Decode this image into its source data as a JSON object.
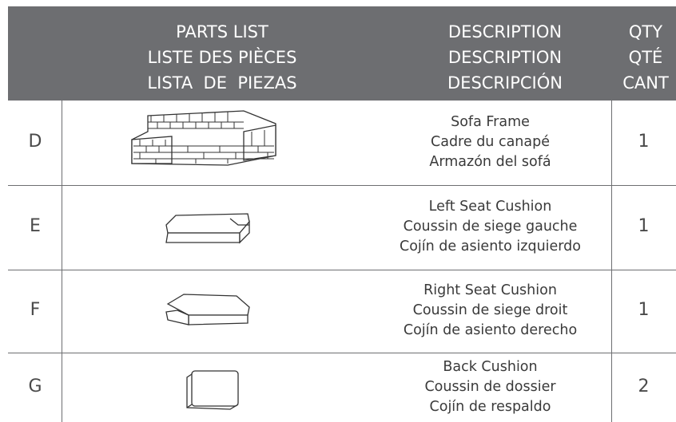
{
  "header": {
    "parts": [
      "PARTS LIST",
      "LISTE DES PIÈCES",
      "LISTA  DE  PIEZAS"
    ],
    "description": [
      "DESCRIPTION",
      "DESCRIPTION",
      "DESCRIPCIÓN"
    ],
    "qty": [
      "QTY",
      "QTÉ",
      "CANT"
    ]
  },
  "rows": [
    {
      "part": "D",
      "description": [
        "Sofa Frame",
        "Cadre du canapé",
        "Armazón del sofá"
      ],
      "qty": 1
    },
    {
      "part": "E",
      "description": [
        "Left Seat Cushion",
        "Coussin de siege gauche",
        "Cojín de asiento izquierdo"
      ],
      "qty": 1
    },
    {
      "part": "F",
      "description": [
        "Right Seat Cushion",
        "Coussin de siege droit",
        "Cojín de asiento derecho"
      ],
      "qty": 1
    },
    {
      "part": "G",
      "description": [
        "Back Cushion",
        "Coussin de dossier",
        "Cojín de respaldo"
      ],
      "qty": 2
    }
  ]
}
